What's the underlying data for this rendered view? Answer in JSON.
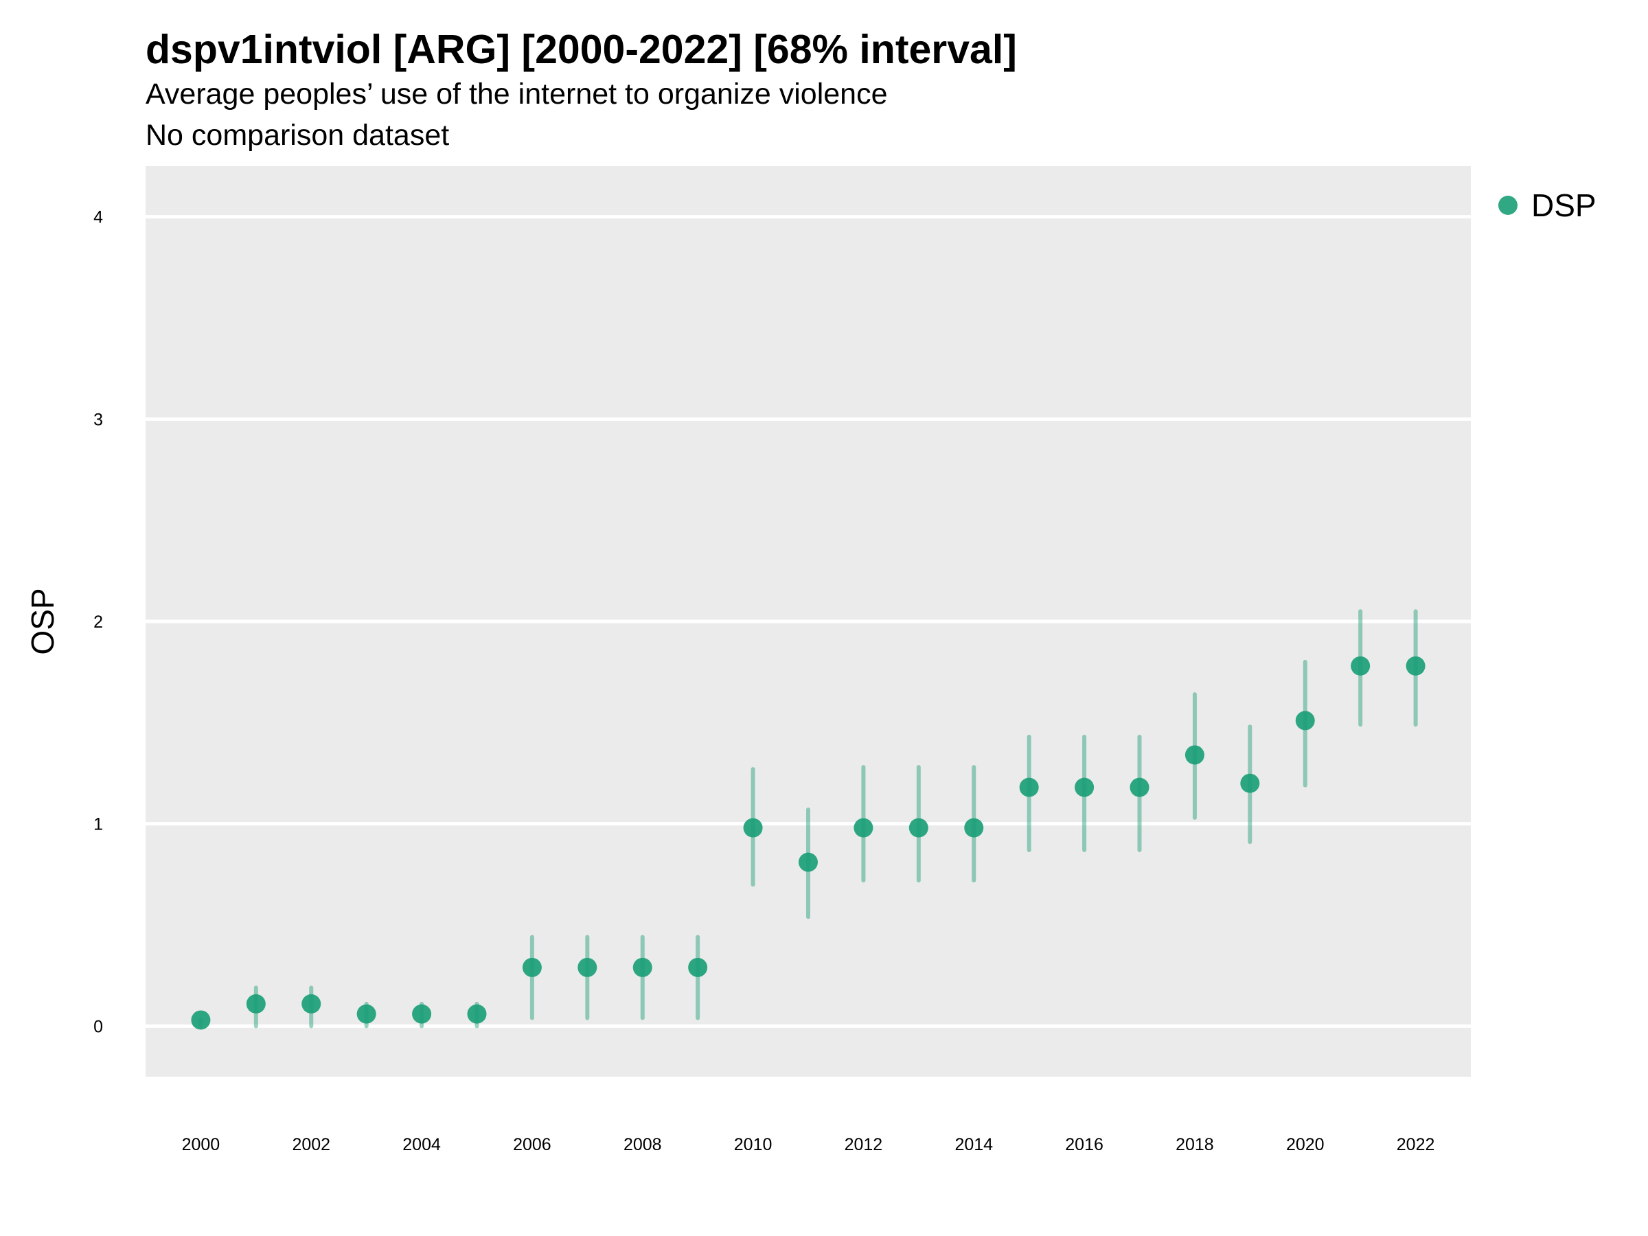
{
  "header": {
    "title": "dspv1intviol [ARG] [2000-2022] [68% interval]",
    "subtitle": "Average peoples’ use of the internet to organize violence",
    "subtitle2": "No comparison dataset"
  },
  "legend": {
    "items": [
      {
        "label": "DSP",
        "color": "#1b9e77"
      }
    ]
  },
  "chart_data": {
    "type": "scatter",
    "title": "dspv1intviol [ARG] [2000-2022] [68% interval]",
    "subtitle": "Average peoples’ use of the internet to organize violence\nNo comparison dataset",
    "xlabel": "",
    "ylabel": "OSP",
    "xlim": [
      1999,
      2023
    ],
    "ylim": [
      -0.25,
      4.25
    ],
    "x_ticks": [
      2000,
      2002,
      2004,
      2006,
      2008,
      2010,
      2012,
      2014,
      2016,
      2018,
      2020,
      2022
    ],
    "y_ticks": [
      0,
      1,
      2,
      3,
      4
    ],
    "grid": "horizontal-major",
    "legend_position": "right",
    "series": [
      {
        "name": "DSP",
        "color": "#1b9e77",
        "x": [
          2000,
          2001,
          2002,
          2003,
          2004,
          2005,
          2006,
          2007,
          2008,
          2009,
          2010,
          2011,
          2012,
          2013,
          2014,
          2015,
          2016,
          2017,
          2018,
          2019,
          2020,
          2021,
          2022
        ],
        "y": [
          0.03,
          0.11,
          0.11,
          0.06,
          0.06,
          0.06,
          0.29,
          0.29,
          0.29,
          0.29,
          0.98,
          0.81,
          0.98,
          0.98,
          0.98,
          1.18,
          1.18,
          1.18,
          1.34,
          1.2,
          1.51,
          1.78,
          1.78
        ],
        "lower": [
          0.0,
          0.0,
          0.0,
          0.0,
          0.0,
          0.0,
          0.04,
          0.04,
          0.04,
          0.04,
          0.7,
          0.54,
          0.72,
          0.72,
          0.72,
          0.87,
          0.87,
          0.87,
          1.03,
          0.91,
          1.19,
          1.49,
          1.49
        ],
        "upper": [
          0.03,
          0.19,
          0.19,
          0.11,
          0.11,
          0.11,
          0.44,
          0.44,
          0.44,
          0.44,
          1.27,
          1.07,
          1.28,
          1.28,
          1.28,
          1.43,
          1.43,
          1.43,
          1.64,
          1.48,
          1.8,
          2.05,
          2.05
        ]
      }
    ]
  }
}
